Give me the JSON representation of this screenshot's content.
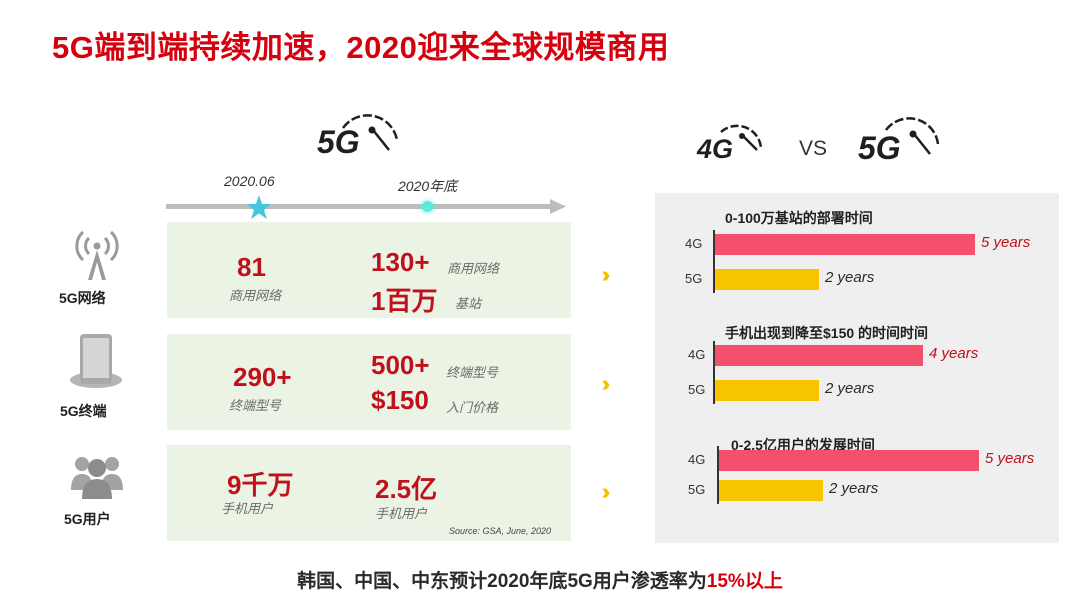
{
  "title": "5G端到端持续加速，2020迎来全球规模商用",
  "logos": {
    "left_5g": "5G",
    "vs_4g": "4G",
    "vs_text": "VS",
    "vs_5g": "5G"
  },
  "timeline": {
    "date1": "2020.06",
    "date2": "2020年底"
  },
  "rows": [
    {
      "label": "5G网络",
      "icon": "cell-tower-icon",
      "v1": "81",
      "v1_sub": "商用网络",
      "v2a": "130+",
      "v2a_sub": "商用网络",
      "v2b": "1百万",
      "v2b_sub": "基站"
    },
    {
      "label": "5G终端",
      "icon": "phone-icon",
      "v1": "290+",
      "v1_sub": "终端型号",
      "v2a": "500+",
      "v2a_sub": "终端型号",
      "v2b": "$150",
      "v2b_sub": "入门价格"
    },
    {
      "label": "5G用户",
      "icon": "users-icon",
      "v1": "9千万",
      "v1_sub": "手机用户",
      "v2a": "2.5亿",
      "v2a_sub": "手机用户"
    }
  ],
  "source": "Source: GSA, June, 2020",
  "chart_data": [
    {
      "type": "bar",
      "title": "0-100万基站的部署时间",
      "categories": [
        "4G",
        "5G"
      ],
      "values": [
        5,
        2
      ],
      "value_labels": [
        "5 years",
        "2 years"
      ],
      "colors": [
        "#f4506e",
        "#f7c400"
      ]
    },
    {
      "type": "bar",
      "title": "手机出现到降至$150 的时间时间",
      "categories": [
        "4G",
        "5G"
      ],
      "values": [
        4,
        2
      ],
      "value_labels": [
        "4 years",
        "2 years"
      ],
      "colors": [
        "#f4506e",
        "#f7c400"
      ]
    },
    {
      "type": "bar",
      "title": "0-2.5亿用户的发展时间",
      "categories": [
        "4G",
        "5G"
      ],
      "values": [
        5,
        2
      ],
      "value_labels": [
        "5 years",
        "2 years"
      ],
      "colors": [
        "#f4506e",
        "#f7c400"
      ]
    }
  ],
  "bottom_text": {
    "prefix": "韩国、中国、中东预计2020年底5G用户渗透率为",
    "highlight": "15%以上"
  }
}
